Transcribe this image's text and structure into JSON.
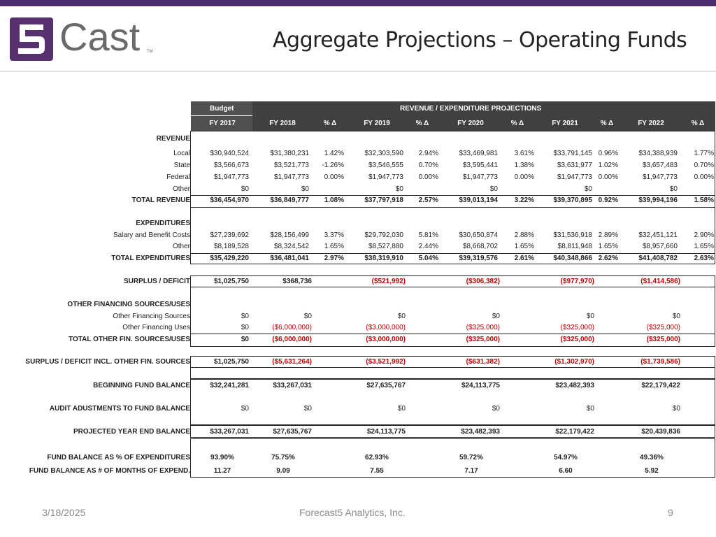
{
  "header": {
    "logo_text": "Cast",
    "logo_tm": "TM",
    "title": "Aggregate Projections – Operating Funds"
  },
  "table": {
    "budget_label": "Budget",
    "projections_label": "REVENUE / EXPENDITURE PROJECTIONS",
    "columns": [
      "FY 2017",
      "FY 2018",
      "% Δ",
      "FY 2019",
      "% Δ",
      "FY 2020",
      "% Δ",
      "FY 2021",
      "% Δ",
      "FY 2022",
      "% Δ"
    ],
    "revenue_heading": "REVENUE",
    "revenue_rows": [
      {
        "label": "Local",
        "v": [
          "$30,940,524",
          "$31,380,231",
          "1.42%",
          "$32,303,590",
          "2.94%",
          "$33,469,981",
          "3.61%",
          "$33,791,145",
          "0.96%",
          "$34,388,939",
          "1.77%"
        ]
      },
      {
        "label": "State",
        "v": [
          "$3,566,673",
          "$3,521,773",
          "-1.26%",
          "$3,546,555",
          "0.70%",
          "$3,595,441",
          "1.38%",
          "$3,631,977",
          "1.02%",
          "$3,657,483",
          "0.70%"
        ]
      },
      {
        "label": "Federal",
        "v": [
          "$1,947,773",
          "$1,947,773",
          "0.00%",
          "$1,947,773",
          "0.00%",
          "$1,947,773",
          "0.00%",
          "$1,947,773",
          "0.00%",
          "$1,947,773",
          "0.00%"
        ]
      },
      {
        "label": "Other",
        "v": [
          "$0",
          "$0",
          "",
          "$0",
          "",
          "$0",
          "",
          "$0",
          "",
          "$0",
          ""
        ]
      }
    ],
    "total_revenue": {
      "label": "TOTAL REVENUE",
      "v": [
        "$36,454,970",
        "$36,849,777",
        "1.08%",
        "$37,797,918",
        "2.57%",
        "$39,013,194",
        "3.22%",
        "$39,370,895",
        "0.92%",
        "$39,994,196",
        "1.58%"
      ]
    },
    "expenditures_heading": "EXPENDITURES",
    "expenditure_rows": [
      {
        "label": "Salary and Benefit Costs",
        "v": [
          "$27,239,692",
          "$28,156,499",
          "3.37%",
          "$29,792,030",
          "5.81%",
          "$30,650,874",
          "2.88%",
          "$31,536,918",
          "2.89%",
          "$32,451,121",
          "2.90%"
        ]
      },
      {
        "label": "Other",
        "v": [
          "$8,189,528",
          "$8,324,542",
          "1.65%",
          "$8,527,880",
          "2.44%",
          "$8,668,702",
          "1.65%",
          "$8,811,948",
          "1.65%",
          "$8,957,660",
          "1.65%"
        ]
      }
    ],
    "total_expenditures": {
      "label": "TOTAL EXPENDITURES",
      "v": [
        "$35,429,220",
        "$36,481,041",
        "2.97%",
        "$38,319,910",
        "5.04%",
        "$39,319,576",
        "2.61%",
        "$40,348,866",
        "2.62%",
        "$41,408,782",
        "2.63%"
      ]
    },
    "surplus": {
      "label": "SURPLUS / DEFICIT",
      "v": [
        "$1,025,750",
        "$368,736",
        "($521,992)",
        "($306,382)",
        "($977,970)",
        "($1,414,586)"
      ]
    },
    "ofs_heading": "OTHER FINANCING SOURCES/USES",
    "ofs_sources": {
      "label": "Other Financing Sources",
      "v": [
        "$0",
        "$0",
        "$0",
        "$0",
        "$0",
        "$0"
      ]
    },
    "ofs_uses": {
      "label": "Other Financing Uses",
      "v": [
        "$0",
        "($6,000,000)",
        "($3,000,000)",
        "($325,000)",
        "($325,000)",
        "($325,000)"
      ]
    },
    "ofs_total": {
      "label": "TOTAL OTHER FIN. SOURCES/USES",
      "v": [
        "$0",
        "($6,000,000)",
        "($3,000,000)",
        "($325,000)",
        "($325,000)",
        "($325,000)"
      ]
    },
    "surplus_incl": {
      "label": "SURPLUS / DEFICIT INCL. OTHER FIN. SOURCES",
      "v": [
        "$1,025,750",
        "($5,631,264)",
        "($3,521,992)",
        "($631,382)",
        "($1,302,970)",
        "($1,739,586)"
      ]
    },
    "beginning": {
      "label": "BEGINNING FUND BALANCE",
      "v": [
        "$32,241,281",
        "$33,267,031",
        "$27,635,767",
        "$24,113,775",
        "$23,482,393",
        "$22,179,422"
      ]
    },
    "audit": {
      "label": "AUDIT ADUSTMENTS TO FUND BALANCE",
      "v": [
        "$0",
        "$0",
        "$0",
        "$0",
        "$0",
        "$0"
      ]
    },
    "projected": {
      "label": "PROJECTED YEAR END BALANCE",
      "v": [
        "$33,267,031",
        "$27,635,767",
        "$24,113,775",
        "$23,482,393",
        "$22,179,422",
        "$20,439,836"
      ]
    },
    "fb_pct": {
      "label": "FUND BALANCE AS % OF EXPENDITURES",
      "v": [
        "93.90%",
        "75.75%",
        "62.93%",
        "59.72%",
        "54.97%",
        "49.36%"
      ]
    },
    "fb_months": {
      "label": "FUND BALANCE AS # OF MONTHS OF EXPEND.",
      "v": [
        "11.27",
        "9.09",
        "7.55",
        "7.17",
        "6.60",
        "5.92"
      ]
    }
  },
  "footer": {
    "date": "3/18/2025",
    "company": "Forecast5 Analytics, Inc.",
    "page": "9"
  }
}
